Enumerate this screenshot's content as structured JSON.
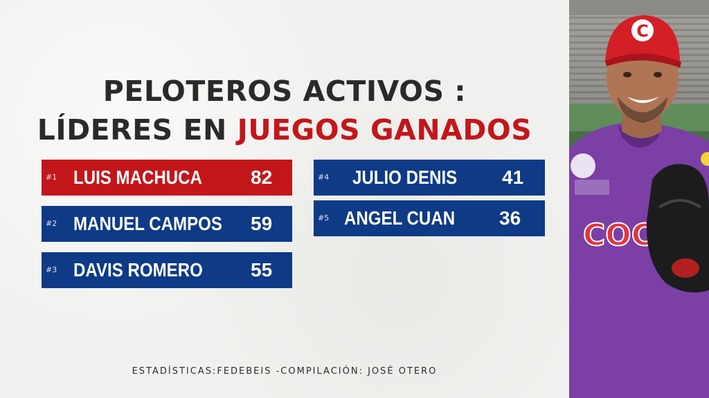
{
  "title": {
    "line1": "PELOTEROS ACTIVOS :",
    "line2_prefix": "LÍDERES EN ",
    "line2_accent": "JUEGOS GANADOS"
  },
  "leaders": [
    {
      "rank": "#1",
      "name": "LUIS MACHUCA",
      "value": "82"
    },
    {
      "rank": "#2",
      "name": "MANUEL CAMPOS",
      "value": "59"
    },
    {
      "rank": "#3",
      "name": "DAVIS ROMERO",
      "value": "55"
    },
    {
      "rank": "#4",
      "name": "JULIO DENIS",
      "value": "41"
    },
    {
      "rank": "#5",
      "name": "ANGEL CUAN",
      "value": "36"
    }
  ],
  "credit": "ESTADÍSTICAS:FEDEBEIS -COMPILACIÓN: JOSÉ OTERO",
  "photo": {
    "cap_logo": "C",
    "jersey_text": "COC"
  },
  "colors": {
    "red": "#c3161b",
    "blue": "#0e3a86",
    "text_dark": "#2a2a2a",
    "jersey_purple": "#7b3fa6"
  }
}
